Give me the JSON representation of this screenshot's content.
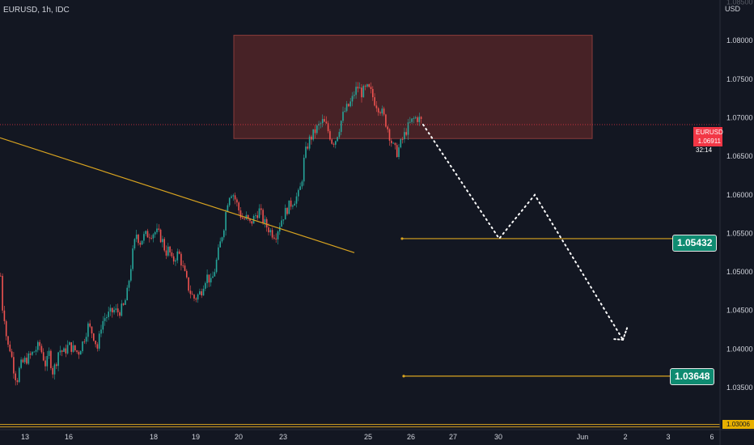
{
  "header": {
    "symbol_label": "EURUSD, 1h, IDC",
    "currency": "USD"
  },
  "colors": {
    "background": "#131722",
    "up": "#26a69a",
    "down": "#ef5350",
    "zone": "#6b2a2a",
    "trendline": "#d9a420",
    "level_line": "#d9a420",
    "level_box": "#0f8b71",
    "price_tag": "#f23645"
  },
  "current_price": {
    "symbol": "EURUSD",
    "price": "1.06911",
    "countdown": "32:14"
  },
  "bottom_price_tag": "1.03006",
  "chart_data": {
    "type": "candlestick",
    "y_axis": {
      "range": [
        1.0295,
        1.0855
      ],
      "ticks": [
        "1.08500",
        "1.08000",
        "1.07500",
        "1.07000",
        "1.06500",
        "1.06000",
        "1.05500",
        "1.05000",
        "1.04500",
        "1.04000",
        "1.03500"
      ]
    },
    "x_axis": {
      "ticks": [
        "13",
        "16",
        "18",
        "19",
        "20",
        "23",
        "25",
        "26",
        "27",
        "30",
        "Jun",
        "2",
        "3",
        "6"
      ]
    },
    "candle_path": [
      [
        0,
        1.0495
      ],
      [
        2,
        1.0455
      ],
      [
        5,
        1.044
      ],
      [
        8,
        1.0405
      ],
      [
        12,
        1.04
      ],
      [
        16,
        1.0375
      ],
      [
        20,
        1.0358
      ],
      [
        24,
        1.0378
      ],
      [
        30,
        1.0385
      ],
      [
        36,
        1.039
      ],
      [
        42,
        1.0398
      ],
      [
        48,
        1.0405
      ],
      [
        52,
        1.0392
      ],
      [
        56,
        1.0378
      ],
      [
        60,
        1.0395
      ],
      [
        64,
        1.037
      ],
      [
        68,
        1.038
      ],
      [
        72,
        1.04
      ],
      [
        78,
        1.0395
      ],
      [
        84,
        1.0405
      ],
      [
        90,
        1.04
      ],
      [
        96,
        1.0395
      ],
      [
        102,
        1.041
      ],
      [
        108,
        1.043
      ],
      [
        114,
        1.042
      ],
      [
        120,
        1.04
      ],
      [
        124,
        1.043
      ],
      [
        128,
        1.044
      ],
      [
        134,
        1.0445
      ],
      [
        140,
        1.045
      ],
      [
        146,
        1.0448
      ],
      [
        152,
        1.0455
      ],
      [
        156,
        1.047
      ],
      [
        160,
        1.05
      ],
      [
        164,
        1.053
      ],
      [
        168,
        1.055
      ],
      [
        172,
        1.0538
      ],
      [
        176,
        1.0545
      ],
      [
        180,
        1.0548
      ],
      [
        186,
        1.055
      ],
      [
        192,
        1.0552
      ],
      [
        196,
        1.0548
      ],
      [
        200,
        1.054
      ],
      [
        204,
        1.0525
      ],
      [
        208,
        1.053
      ],
      [
        212,
        1.0512
      ],
      [
        216,
        1.052
      ],
      [
        220,
        1.0525
      ],
      [
        224,
        1.051
      ],
      [
        228,
        1.0495
      ],
      [
        232,
        1.048
      ],
      [
        236,
        1.047
      ],
      [
        240,
        1.0465
      ],
      [
        244,
        1.047
      ],
      [
        248,
        1.0475
      ],
      [
        252,
        1.049
      ],
      [
        256,
        1.0495
      ],
      [
        260,
        1.0485
      ],
      [
        264,
        1.05
      ],
      [
        268,
        1.052
      ],
      [
        272,
        1.054
      ],
      [
        276,
        1.056
      ],
      [
        280,
        1.059
      ],
      [
        284,
        1.0605
      ],
      [
        288,
        1.06
      ],
      [
        292,
        1.0588
      ],
      [
        296,
        1.0575
      ],
      [
        300,
        1.0568
      ],
      [
        304,
        1.057
      ],
      [
        308,
        1.0562
      ],
      [
        312,
        1.0568
      ],
      [
        316,
        1.0575
      ],
      [
        320,
        1.058
      ],
      [
        324,
        1.0568
      ],
      [
        328,
        1.056
      ],
      [
        332,
        1.0555
      ],
      [
        336,
        1.055
      ],
      [
        340,
        1.0548
      ],
      [
        344,
        1.056
      ],
      [
        348,
        1.057
      ],
      [
        352,
        1.0578
      ],
      [
        356,
        1.0585
      ],
      [
        360,
        1.059
      ],
      [
        364,
        1.0595
      ],
      [
        368,
        1.06
      ],
      [
        372,
        1.0615
      ],
      [
        374,
        1.064
      ],
      [
        378,
        1.066
      ],
      [
        382,
        1.0672
      ],
      [
        386,
        1.0678
      ],
      [
        390,
        1.0685
      ],
      [
        394,
        1.069
      ],
      [
        398,
        1.0695
      ],
      [
        402,
        1.069
      ],
      [
        406,
        1.068
      ],
      [
        410,
        1.0668
      ],
      [
        414,
        1.0672
      ],
      [
        418,
        1.0685
      ],
      [
        422,
        1.07
      ],
      [
        426,
        1.071
      ],
      [
        430,
        1.0715
      ],
      [
        434,
        1.0722
      ],
      [
        438,
        1.0735
      ],
      [
        442,
        1.074
      ],
      [
        446,
        1.0732
      ],
      [
        450,
        1.0736
      ],
      [
        454,
        1.0738
      ],
      [
        458,
        1.0732
      ],
      [
        462,
        1.0722
      ],
      [
        466,
        1.0715
      ],
      [
        470,
        1.071
      ],
      [
        474,
        1.07
      ],
      [
        478,
        1.0688
      ],
      [
        482,
        1.0672
      ],
      [
        486,
        1.066
      ],
      [
        490,
        1.0655
      ],
      [
        494,
        1.0665
      ],
      [
        498,
        1.0675
      ],
      [
        502,
        1.0685
      ],
      [
        506,
        1.0692
      ],
      [
        510,
        1.0698
      ],
      [
        514,
        1.07
      ],
      [
        518,
        1.0698
      ],
      [
        522,
        1.0693
      ]
    ],
    "resistance_zone": {
      "price_top": 1.0807,
      "price_bottom": 1.0673
    },
    "current_price_line": 1.06911,
    "trendline": {
      "start_price": 1.0674,
      "end_price": 1.0525
    },
    "levels": [
      {
        "price": 1.05432,
        "label": "1.05432"
      },
      {
        "price": 1.03648,
        "label": "1.03648"
      }
    ],
    "bottom_line_price": 1.03006,
    "projection": [
      [
        1.06911,
        "start"
      ],
      [
        1.05432,
        "low"
      ],
      [
        1.06,
        "bounce"
      ],
      [
        1.0412,
        "target"
      ]
    ]
  }
}
